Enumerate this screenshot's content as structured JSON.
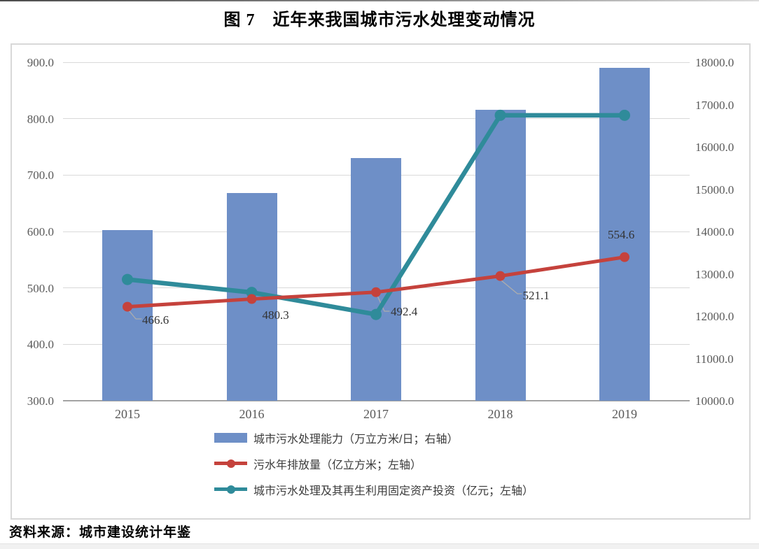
{
  "page": {
    "title": "图 7　近年来我国城市污水处理变动情况",
    "source": "资料来源：城市建设统计年鉴"
  },
  "colors": {
    "bar_blue": "#6e8fc7",
    "line_red": "#c5423c",
    "line_teal": "#2f8b9a",
    "gridline": "#d9d9d9",
    "axis_line": "#a3a3a3",
    "tick_text": "#595959",
    "leader": "#adadad"
  },
  "chart_data": {
    "type": "bar",
    "subtype": "combo: bars on right axis + two lines on left axis",
    "categories": [
      "2015",
      "2016",
      "2017",
      "2018",
      "2019"
    ],
    "series": [
      {
        "name": "城市污水处理能力（万立方米/日；右轴）",
        "type": "bar",
        "axis": "right",
        "color": "#6e8fc7",
        "values": [
          14040,
          14910,
          15740,
          16880,
          17860
        ],
        "values_estimated_from_pixels": true
      },
      {
        "name": "污水年排放量（亿立方米；左轴）",
        "type": "line",
        "axis": "left",
        "color": "#c5423c",
        "values": [
          466.6,
          480.3,
          492.4,
          521.1,
          554.6
        ],
        "point_labels": [
          "466.6",
          "480.3",
          "492.4",
          "521.1",
          "554.6"
        ]
      },
      {
        "name": "城市污水处理及其再生利用固定资产投资（亿元；左轴）",
        "type": "line",
        "axis": "left",
        "color": "#2f8b9a",
        "values": [
          515,
          492,
          453,
          806,
          806
        ],
        "values_estimated_from_pixels": true
      }
    ],
    "left_axis": {
      "min": 300,
      "max": 900,
      "step": 100,
      "tick_labels": [
        "300.0",
        "400.0",
        "500.0",
        "600.0",
        "700.0",
        "800.0",
        "900.0"
      ]
    },
    "right_axis": {
      "min": 10000,
      "max": 18000,
      "step": 1000,
      "tick_labels": [
        "10000.0",
        "11000.0",
        "12000.0",
        "13000.0",
        "14000.0",
        "15000.0",
        "16000.0",
        "17000.0",
        "18000.0"
      ]
    },
    "grid": "horizontal gridlines at left-axis intervals",
    "legend_position": "bottom, left-aligned column of three rows",
    "title": "图 7　近年来我国城市污水处理变动情况"
  }
}
